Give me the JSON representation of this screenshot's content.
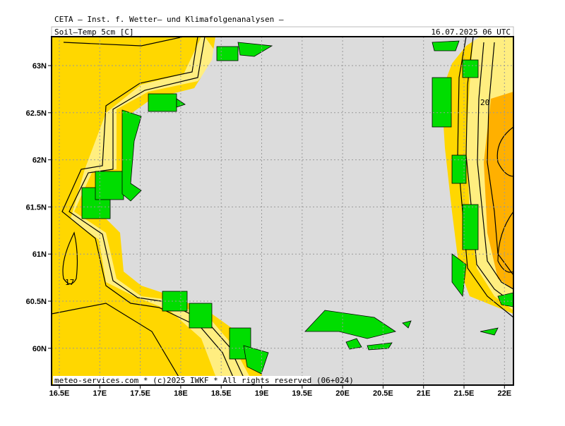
{
  "header": {
    "title": "CETA — Inst. f. Wetter— und Klimafolgenanalysen —",
    "field": "Soil—Temp_5cm [C]",
    "valid_time": "16.07.2025 06 UTC"
  },
  "footer": "meteo-services.com * (c)2025 IWKF * All rights reserved (06+024)",
  "x_axis": {
    "labels": [
      "16.5E",
      "17E",
      "17.5E",
      "18E",
      "18.5E",
      "19E",
      "19.5E",
      "20E",
      "20.5E",
      "21E",
      "21.5E",
      "22E"
    ]
  },
  "y_axis": {
    "labels": [
      "63N",
      "62.5N",
      "62N",
      "61.5N",
      "61N",
      "60.5N",
      "60N"
    ]
  },
  "contour_labels": [
    "17",
    "20"
  ]
}
